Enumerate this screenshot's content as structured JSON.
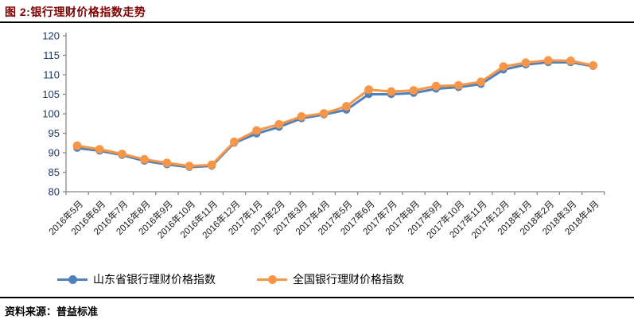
{
  "header": {
    "title": "图 2:银行理财价格指数走势"
  },
  "footer": {
    "source_label": "资料来源：普益标准"
  },
  "colors": {
    "title_text": "#800000",
    "axis_line": "#888888",
    "y_tick_text": "#1F3864",
    "x_tick_text": "#1a1a1a",
    "rule_line": "#000000",
    "series_shandong": "#4F81BD",
    "series_national": "#F79646"
  },
  "chart_data": {
    "type": "line",
    "title": "银行理财价格指数走势",
    "xlabel": "",
    "ylabel": "",
    "ylim": [
      80,
      120
    ],
    "yticks": [
      80,
      85,
      90,
      95,
      100,
      105,
      110,
      115,
      120
    ],
    "grid": false,
    "legend_position": "bottom",
    "marker": "circle",
    "categories": [
      "2016年5月",
      "2016年6月",
      "2016年7月",
      "2016年8月",
      "2016年9月",
      "2016年10月",
      "2016年11月",
      "2016年12月",
      "2017年1月",
      "2017年2月",
      "2017年3月",
      "2017年4月",
      "2017年5月",
      "2017年6月",
      "2017年7月",
      "2017年8月",
      "2017年9月",
      "2017年10月",
      "2017年11月",
      "2017年12月",
      "2018年1月",
      "2018年2月",
      "2018年3月",
      "2018年4月"
    ],
    "series": [
      {
        "name": "山东省银行理财价格指数",
        "color": "#4F81BD",
        "values": [
          91.2,
          90.5,
          89.4,
          87.9,
          87.0,
          86.3,
          86.6,
          92.5,
          94.9,
          96.6,
          98.8,
          99.8,
          101.0,
          105.0,
          105.0,
          105.3,
          106.4,
          106.8,
          107.6,
          111.3,
          112.6,
          113.2,
          113.2,
          112.2
        ]
      },
      {
        "name": "全国银行理财价格指数",
        "color": "#F79646",
        "values": [
          91.8,
          90.9,
          89.7,
          88.3,
          87.4,
          86.6,
          86.9,
          92.8,
          95.7,
          97.3,
          99.3,
          100.1,
          101.9,
          106.2,
          105.7,
          106.0,
          107.1,
          107.3,
          108.2,
          112.1,
          113.1,
          113.7,
          113.6,
          112.4
        ]
      }
    ]
  }
}
